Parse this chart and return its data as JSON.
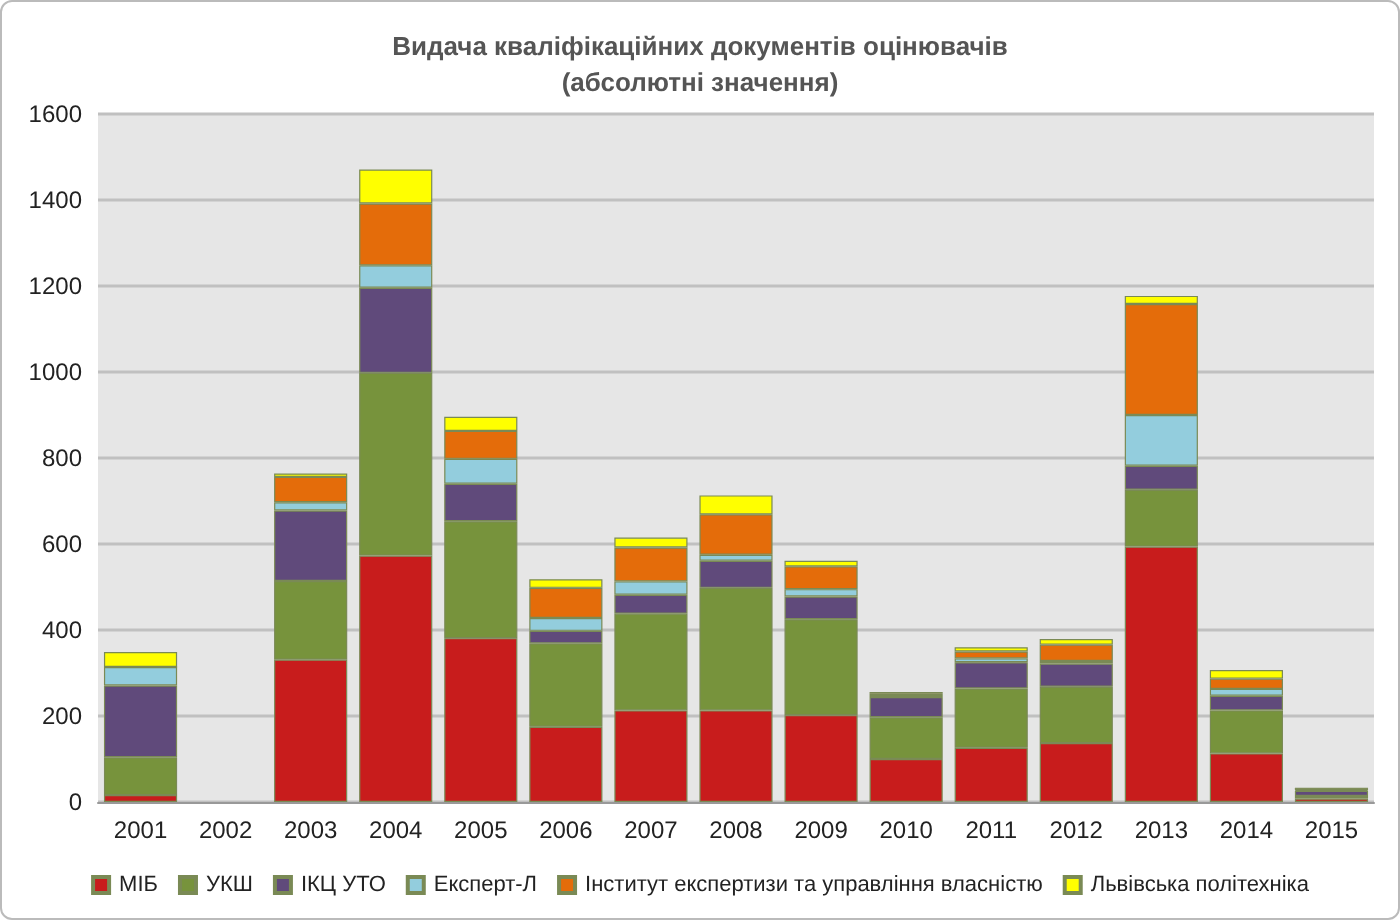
{
  "chart_data": {
    "type": "bar",
    "stacked": true,
    "title": "Видача кваліфікаційних документів оцінювачів\n(абсолютні значення)",
    "categories": [
      "2001",
      "2002",
      "2003",
      "2004",
      "2005",
      "2006",
      "2007",
      "2008",
      "2009",
      "2010",
      "2011",
      "2012",
      "2013",
      "2014",
      "2015"
    ],
    "series": [
      {
        "name": "МІБ",
        "color": "#c81c1c",
        "values": [
          16,
          null,
          331,
          573,
          381,
          175,
          213,
          213,
          202,
          100,
          126,
          137,
          594,
          113,
          8
        ]
      },
      {
        "name": "УКШ",
        "color": "#77933c",
        "values": [
          88,
          null,
          183,
          425,
          272,
          194,
          225,
          285,
          223,
          97,
          138,
          131,
          132,
          100,
          6
        ]
      },
      {
        "name": "ІКЦ УТО",
        "color": "#604a7b",
        "values": [
          167,
          null,
          164,
          198,
          87,
          29,
          44,
          63,
          53,
          47,
          61,
          54,
          56,
          34,
          12
        ]
      },
      {
        "name": "Експерт-Л",
        "color": "#93cddd",
        "values": [
          43,
          null,
          19,
          52,
          58,
          30,
          31,
          14,
          17,
          5,
          9,
          6,
          118,
          16,
          2
        ]
      },
      {
        "name": "Інститут експертизи та управління власністю",
        "color": "#e46c0a",
        "values": [
          0,
          null,
          59,
          144,
          65,
          70,
          79,
          94,
          53,
          4,
          16,
          38,
          258,
          24,
          4
        ]
      },
      {
        "name": "Львівська політехніка",
        "color": "#ffff00",
        "values": [
          35,
          null,
          8,
          79,
          33,
          20,
          23,
          44,
          13,
          3,
          10,
          13,
          19,
          20,
          0
        ]
      }
    ],
    "ylim": [
      0,
      1600
    ],
    "yticks": [
      0,
      200,
      400,
      600,
      800,
      1000,
      1200,
      1400,
      1600
    ],
    "grid": "y",
    "legend": "bottom"
  }
}
